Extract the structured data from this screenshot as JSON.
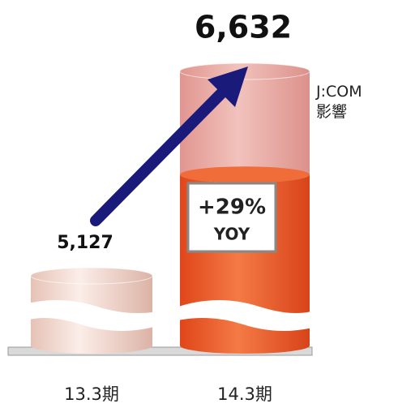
{
  "chart_data": {
    "type": "bar",
    "categories": [
      "13.3期",
      "14.3期"
    ],
    "values": [
      5127,
      6632
    ],
    "value_labels": [
      "5,127",
      "6,632"
    ],
    "colors": [
      "#f1d8cf",
      "#f05a22"
    ],
    "ylim": [
      4590,
      6632
    ],
    "jcom_effect": {
      "label": "J:COM\n影響",
      "value": 760,
      "color": "#eaa8a2"
    },
    "annotations": {
      "growth": "+29%",
      "yoy": "YOY"
    }
  }
}
